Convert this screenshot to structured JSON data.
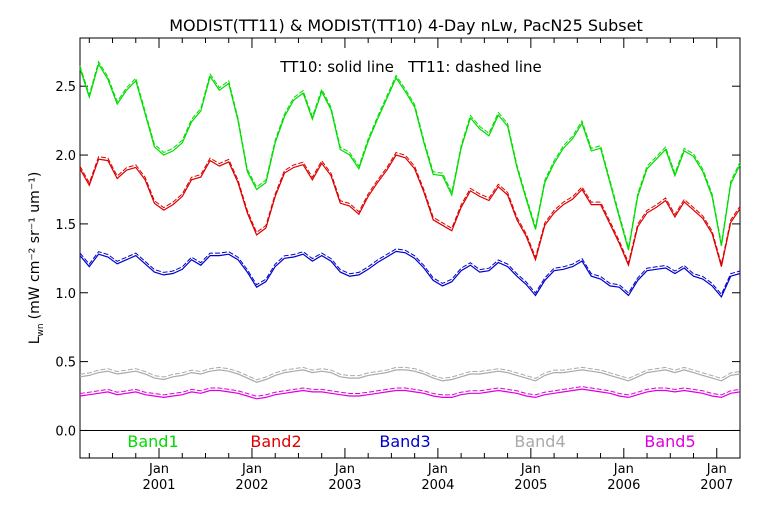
{
  "chart_data": {
    "type": "line",
    "title": "MODIST(TT11) & MODIST(TT10) 4-Day nLw, PacN25 Subset",
    "subtitle": "TT10: solid line   TT11: dashed line",
    "ylabel_main": "L",
    "ylabel_sub": "wn",
    "ylabel_units": "(mW cm⁻² sr⁻¹ um⁻¹)",
    "ylim": [
      -0.2,
      2.85
    ],
    "xlim": [
      2000.15,
      2007.25
    ],
    "yticks": [
      {
        "v": 0.0,
        "label": "0.0"
      },
      {
        "v": 0.5,
        "label": "0.5"
      },
      {
        "v": 1.0,
        "label": "1.0"
      },
      {
        "v": 1.5,
        "label": "1.5"
      },
      {
        "v": 2.0,
        "label": "2.0"
      },
      {
        "v": 2.5,
        "label": "2.5"
      }
    ],
    "xticks": [
      {
        "v": 2001,
        "month": "Jan",
        "year": "2001"
      },
      {
        "v": 2002,
        "month": "Jan",
        "year": "2002"
      },
      {
        "v": 2003,
        "month": "Jan",
        "year": "2003"
      },
      {
        "v": 2004,
        "month": "Jan",
        "year": "2004"
      },
      {
        "v": 2005,
        "month": "Jan",
        "year": "2005"
      },
      {
        "v": 2006,
        "month": "Jan",
        "year": "2006"
      },
      {
        "v": 2007,
        "month": "Jan",
        "year": "2007"
      }
    ],
    "x": [
      2000.15,
      2000.25,
      2000.35,
      2000.45,
      2000.55,
      2000.65,
      2000.75,
      2000.85,
      2000.95,
      2001.05,
      2001.15,
      2001.25,
      2001.35,
      2001.45,
      2001.55,
      2001.65,
      2001.75,
      2001.85,
      2001.95,
      2002.05,
      2002.15,
      2002.25,
      2002.35,
      2002.45,
      2002.55,
      2002.65,
      2002.75,
      2002.85,
      2002.95,
      2003.05,
      2003.15,
      2003.25,
      2003.35,
      2003.45,
      2003.55,
      2003.65,
      2003.75,
      2003.85,
      2003.95,
      2004.05,
      2004.15,
      2004.25,
      2004.35,
      2004.45,
      2004.55,
      2004.65,
      2004.75,
      2004.85,
      2004.95,
      2005.05,
      2005.15,
      2005.25,
      2005.35,
      2005.45,
      2005.55,
      2005.65,
      2005.75,
      2005.85,
      2005.95,
      2006.05,
      2006.15,
      2006.25,
      2006.35,
      2006.45,
      2006.55,
      2006.65,
      2006.75,
      2006.85,
      2006.95,
      2007.05,
      2007.15,
      2007.25
    ],
    "series": [
      {
        "name": "Band1",
        "color": "#00dd00",
        "values": [
          2.63,
          2.42,
          2.66,
          2.55,
          2.37,
          2.47,
          2.54,
          2.3,
          2.06,
          2.0,
          2.03,
          2.09,
          2.24,
          2.32,
          2.57,
          2.47,
          2.52,
          2.25,
          1.88,
          1.75,
          1.8,
          2.09,
          2.28,
          2.4,
          2.45,
          2.26,
          2.46,
          2.33,
          2.04,
          2.0,
          1.9,
          2.1,
          2.26,
          2.41,
          2.56,
          2.46,
          2.35,
          2.09,
          1.86,
          1.85,
          1.71,
          2.05,
          2.27,
          2.19,
          2.14,
          2.29,
          2.21,
          1.91,
          1.68,
          1.46,
          1.8,
          1.94,
          2.05,
          2.12,
          2.23,
          2.03,
          2.05,
          1.8,
          1.55,
          1.31,
          1.7,
          1.9,
          1.97,
          2.04,
          1.85,
          2.03,
          1.99,
          1.88,
          1.7,
          1.34,
          1.79,
          1.93
        ]
      },
      {
        "name": "Band2",
        "color": "#dd0000",
        "values": [
          1.9,
          1.78,
          1.97,
          1.96,
          1.83,
          1.89,
          1.91,
          1.82,
          1.65,
          1.6,
          1.64,
          1.7,
          1.82,
          1.84,
          1.96,
          1.92,
          1.95,
          1.8,
          1.58,
          1.42,
          1.47,
          1.7,
          1.87,
          1.91,
          1.93,
          1.82,
          1.94,
          1.85,
          1.65,
          1.63,
          1.57,
          1.7,
          1.8,
          1.89,
          2.0,
          1.98,
          1.9,
          1.73,
          1.53,
          1.49,
          1.45,
          1.62,
          1.74,
          1.7,
          1.67,
          1.77,
          1.71,
          1.53,
          1.41,
          1.24,
          1.49,
          1.58,
          1.64,
          1.68,
          1.75,
          1.64,
          1.64,
          1.5,
          1.36,
          1.2,
          1.48,
          1.58,
          1.62,
          1.67,
          1.55,
          1.66,
          1.6,
          1.54,
          1.43,
          1.19,
          1.51,
          1.61
        ]
      },
      {
        "name": "Band3",
        "color": "#0000cc",
        "values": [
          1.27,
          1.19,
          1.28,
          1.26,
          1.21,
          1.24,
          1.27,
          1.21,
          1.15,
          1.13,
          1.14,
          1.17,
          1.24,
          1.2,
          1.27,
          1.27,
          1.28,
          1.24,
          1.15,
          1.04,
          1.08,
          1.19,
          1.25,
          1.26,
          1.28,
          1.23,
          1.27,
          1.23,
          1.15,
          1.12,
          1.13,
          1.17,
          1.22,
          1.26,
          1.3,
          1.29,
          1.25,
          1.18,
          1.09,
          1.05,
          1.08,
          1.16,
          1.2,
          1.15,
          1.16,
          1.22,
          1.19,
          1.12,
          1.06,
          0.98,
          1.09,
          1.16,
          1.17,
          1.19,
          1.23,
          1.12,
          1.1,
          1.05,
          1.04,
          0.98,
          1.09,
          1.16,
          1.17,
          1.18,
          1.14,
          1.18,
          1.12,
          1.1,
          1.05,
          0.97,
          1.12,
          1.14
        ]
      },
      {
        "name": "Band4",
        "color": "#aaaaaa",
        "values": [
          0.39,
          0.4,
          0.42,
          0.43,
          0.41,
          0.42,
          0.43,
          0.41,
          0.38,
          0.37,
          0.39,
          0.4,
          0.42,
          0.41,
          0.43,
          0.44,
          0.43,
          0.41,
          0.38,
          0.35,
          0.37,
          0.4,
          0.42,
          0.43,
          0.44,
          0.42,
          0.43,
          0.42,
          0.39,
          0.38,
          0.38,
          0.4,
          0.41,
          0.42,
          0.44,
          0.44,
          0.43,
          0.41,
          0.38,
          0.36,
          0.37,
          0.39,
          0.41,
          0.41,
          0.42,
          0.43,
          0.42,
          0.4,
          0.38,
          0.36,
          0.4,
          0.42,
          0.42,
          0.43,
          0.44,
          0.43,
          0.42,
          0.4,
          0.38,
          0.36,
          0.39,
          0.42,
          0.43,
          0.44,
          0.42,
          0.44,
          0.42,
          0.4,
          0.38,
          0.36,
          0.4,
          0.41
        ]
      },
      {
        "name": "Band5",
        "color": "#dd00dd",
        "values": [
          0.25,
          0.26,
          0.27,
          0.28,
          0.26,
          0.27,
          0.28,
          0.26,
          0.25,
          0.24,
          0.25,
          0.26,
          0.28,
          0.27,
          0.29,
          0.29,
          0.28,
          0.27,
          0.25,
          0.23,
          0.24,
          0.26,
          0.27,
          0.28,
          0.29,
          0.28,
          0.28,
          0.27,
          0.26,
          0.25,
          0.25,
          0.26,
          0.27,
          0.28,
          0.29,
          0.29,
          0.28,
          0.27,
          0.25,
          0.24,
          0.24,
          0.26,
          0.27,
          0.27,
          0.28,
          0.29,
          0.28,
          0.27,
          0.25,
          0.24,
          0.26,
          0.27,
          0.28,
          0.29,
          0.3,
          0.29,
          0.28,
          0.27,
          0.25,
          0.24,
          0.26,
          0.28,
          0.29,
          0.29,
          0.28,
          0.29,
          0.28,
          0.27,
          0.25,
          0.24,
          0.27,
          0.28
        ]
      }
    ]
  }
}
